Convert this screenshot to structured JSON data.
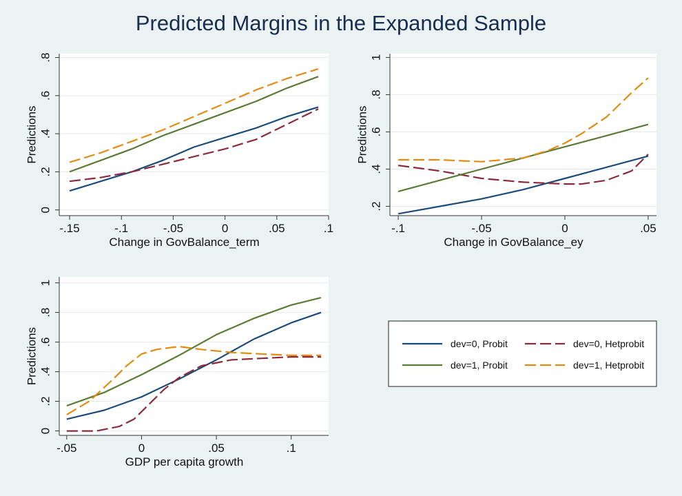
{
  "title": "Predicted Margins in the Expanded Sample",
  "colors": {
    "background": "#eaf2f3",
    "plot_bg": "#ffffff",
    "grid": "#e3eaed",
    "dev0_probit": "#1a4a7a",
    "dev0_hetprobit": "#8b2a3c",
    "dev1_probit": "#5a7a32",
    "dev1_hetprobit": "#e08c10"
  },
  "legend": {
    "placement": "bottom-right",
    "items": [
      {
        "label": "dev=0, Probit",
        "key": "dev0_probit",
        "dash": false
      },
      {
        "label": "dev=0, Hetprobit",
        "key": "dev0_hetprobit",
        "dash": true
      },
      {
        "label": "dev=1, Probit",
        "key": "dev1_probit",
        "dash": false
      },
      {
        "label": "dev=1, Hetprobit",
        "key": "dev1_hetprobit",
        "dash": true
      }
    ]
  },
  "chart_data": [
    {
      "type": "line",
      "xlabel": "Change in GovBalance_term",
      "ylabel": "Predictions",
      "xlim": [
        -0.16,
        0.1
      ],
      "ylim": [
        -0.03,
        0.82
      ],
      "xticks": [
        -0.15,
        -0.1,
        -0.05,
        0,
        0.05,
        0.1
      ],
      "xticklabels": [
        "-.15",
        "-.1",
        "-.05",
        "0",
        ".05",
        ".1"
      ],
      "yticks": [
        0,
        0.2,
        0.4,
        0.6,
        0.8
      ],
      "yticklabels": [
        "0",
        ".2",
        ".4",
        ".6",
        ".8"
      ],
      "grid": true,
      "series": [
        {
          "key": "dev0_probit",
          "x": [
            -0.15,
            -0.12,
            -0.09,
            -0.06,
            -0.03,
            0,
            0.03,
            0.06,
            0.09
          ],
          "y": [
            0.1,
            0.15,
            0.2,
            0.26,
            0.33,
            0.38,
            0.43,
            0.49,
            0.54
          ]
        },
        {
          "key": "dev0_hetprobit",
          "x": [
            -0.15,
            -0.12,
            -0.09,
            -0.06,
            -0.03,
            0,
            0.03,
            0.06,
            0.09
          ],
          "y": [
            0.15,
            0.17,
            0.2,
            0.24,
            0.28,
            0.32,
            0.37,
            0.45,
            0.53
          ]
        },
        {
          "key": "dev1_probit",
          "x": [
            -0.15,
            -0.12,
            -0.09,
            -0.06,
            -0.03,
            0,
            0.03,
            0.06,
            0.09
          ],
          "y": [
            0.2,
            0.26,
            0.32,
            0.39,
            0.45,
            0.51,
            0.57,
            0.64,
            0.7
          ]
        },
        {
          "key": "dev1_hetprobit",
          "x": [
            -0.15,
            -0.12,
            -0.09,
            -0.06,
            -0.03,
            0,
            0.03,
            0.06,
            0.09
          ],
          "y": [
            0.25,
            0.3,
            0.36,
            0.42,
            0.49,
            0.56,
            0.63,
            0.69,
            0.74
          ]
        }
      ]
    },
    {
      "type": "line",
      "xlabel": "Change in GovBalance_ey",
      "ylabel": "Predictions",
      "xlim": [
        -0.105,
        0.055
      ],
      "ylim": [
        0.15,
        1.02
      ],
      "xticks": [
        -0.1,
        -0.05,
        0,
        0.05
      ],
      "xticklabels": [
        "-.1",
        "-.05",
        "0",
        ".05"
      ],
      "yticks": [
        0.2,
        0.4,
        0.6,
        0.8,
        1
      ],
      "yticklabels": [
        ".2",
        ".4",
        ".6",
        ".8",
        "1"
      ],
      "grid": true,
      "series": [
        {
          "key": "dev0_probit",
          "x": [
            -0.1,
            -0.075,
            -0.05,
            -0.025,
            0,
            0.025,
            0.05
          ],
          "y": [
            0.16,
            0.2,
            0.24,
            0.29,
            0.35,
            0.41,
            0.47
          ]
        },
        {
          "key": "dev0_hetprobit",
          "x": [
            -0.1,
            -0.075,
            -0.05,
            -0.025,
            0,
            0.01,
            0.025,
            0.04,
            0.05
          ],
          "y": [
            0.42,
            0.39,
            0.35,
            0.33,
            0.32,
            0.32,
            0.34,
            0.39,
            0.48
          ]
        },
        {
          "key": "dev1_probit",
          "x": [
            -0.1,
            -0.075,
            -0.05,
            -0.025,
            0,
            0.025,
            0.05
          ],
          "y": [
            0.28,
            0.34,
            0.4,
            0.46,
            0.52,
            0.58,
            0.64
          ]
        },
        {
          "key": "dev1_hetprobit",
          "x": [
            -0.1,
            -0.075,
            -0.05,
            -0.025,
            -0.01,
            0,
            0.01,
            0.025,
            0.04,
            0.05
          ],
          "y": [
            0.45,
            0.45,
            0.44,
            0.46,
            0.5,
            0.54,
            0.59,
            0.68,
            0.81,
            0.89
          ]
        }
      ]
    },
    {
      "type": "line",
      "xlabel": "GDP per capita growth",
      "ylabel": "Predictions",
      "xlim": [
        -0.055,
        0.125
      ],
      "ylim": [
        -0.03,
        1.04
      ],
      "xticks": [
        -0.05,
        0,
        0.05,
        0.1
      ],
      "xticklabels": [
        "-.05",
        "0",
        ".05",
        ".1"
      ],
      "yticks": [
        0,
        0.2,
        0.4,
        0.6,
        0.8,
        1
      ],
      "yticklabels": [
        "0",
        ".2",
        ".4",
        ".6",
        ".8",
        "1"
      ],
      "grid": true,
      "series": [
        {
          "key": "dev0_probit",
          "x": [
            -0.05,
            -0.025,
            0,
            0.025,
            0.05,
            0.075,
            0.1,
            0.12
          ],
          "y": [
            0.08,
            0.14,
            0.23,
            0.35,
            0.48,
            0.62,
            0.73,
            0.8
          ]
        },
        {
          "key": "dev0_hetprobit",
          "x": [
            -0.05,
            -0.03,
            -0.015,
            -0.005,
            0.005,
            0.015,
            0.025,
            0.04,
            0.06,
            0.08,
            0.1,
            0.12
          ],
          "y": [
            0.0,
            0.0,
            0.03,
            0.08,
            0.18,
            0.28,
            0.36,
            0.44,
            0.48,
            0.49,
            0.5,
            0.5
          ]
        },
        {
          "key": "dev1_probit",
          "x": [
            -0.05,
            -0.025,
            0,
            0.025,
            0.05,
            0.075,
            0.1,
            0.12
          ],
          "y": [
            0.17,
            0.26,
            0.38,
            0.51,
            0.65,
            0.76,
            0.85,
            0.9
          ]
        },
        {
          "key": "dev1_hetprobit",
          "x": [
            -0.05,
            -0.035,
            -0.02,
            -0.01,
            0,
            0.01,
            0.025,
            0.04,
            0.06,
            0.08,
            0.1,
            0.12
          ],
          "y": [
            0.11,
            0.2,
            0.34,
            0.44,
            0.52,
            0.55,
            0.57,
            0.55,
            0.53,
            0.52,
            0.51,
            0.51
          ]
        }
      ]
    }
  ]
}
